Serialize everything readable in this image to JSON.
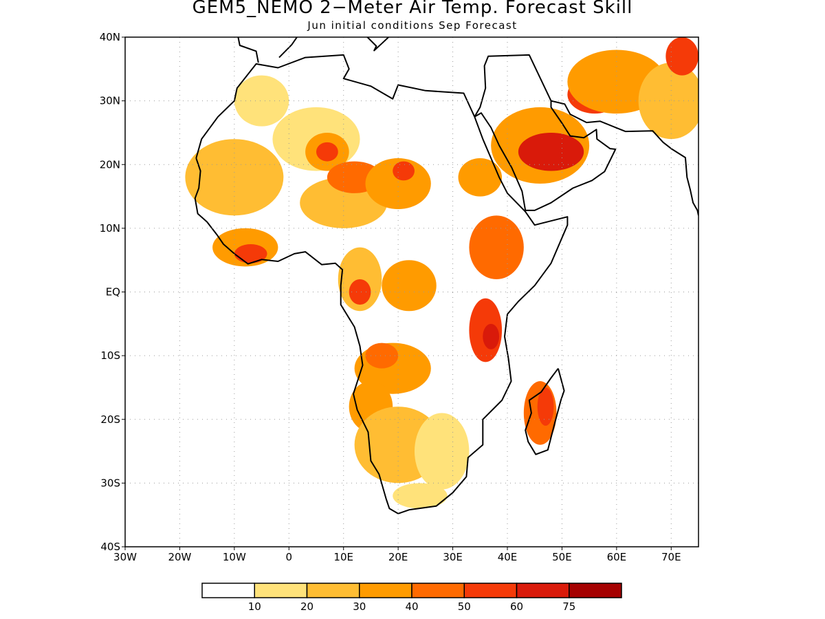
{
  "title": "GEM5_NEMO 2−Meter Air Temp. Forecast Skill",
  "subtitle": "Jun initial conditions  Sep Forecast",
  "map": {
    "lon_range": [
      -30,
      75
    ],
    "lat_range": [
      -40,
      40
    ],
    "lon_ticks": [
      -30,
      -20,
      -10,
      0,
      10,
      20,
      30,
      40,
      50,
      60,
      70
    ],
    "lat_ticks": [
      40,
      30,
      20,
      10,
      0,
      -10,
      -20,
      -30,
      -40
    ],
    "lon_labels": [
      "30W",
      "20W",
      "10W",
      "0",
      "10E",
      "20E",
      "30E",
      "40E",
      "50E",
      "60E",
      "70E"
    ],
    "lat_labels": [
      "40N",
      "30N",
      "20N",
      "10N",
      "EQ",
      "10S",
      "20S",
      "30S",
      "40S"
    ],
    "grid": "dotted"
  },
  "colorbar": {
    "levels": [
      "10",
      "20",
      "30",
      "40",
      "50",
      "60",
      "75"
    ],
    "colors": [
      "#ffffff",
      "#ffe27a",
      "#ffbd33",
      "#ff9b00",
      "#ff6a00",
      "#f53a08",
      "#d91a0a",
      "#a50000"
    ]
  },
  "skill_regions": [
    {
      "level": 1,
      "lon": 5,
      "lat": 24,
      "rx": 8,
      "ry": 5
    },
    {
      "level": 3,
      "lon": 7,
      "lat": 22,
      "rx": 4,
      "ry": 3
    },
    {
      "level": 5,
      "lon": 7,
      "lat": 22,
      "rx": 2,
      "ry": 1.5
    },
    {
      "level": 2,
      "lon": -10,
      "lat": 18,
      "rx": 9,
      "ry": 6
    },
    {
      "level": 1,
      "lon": -5,
      "lat": 30,
      "rx": 5,
      "ry": 4
    },
    {
      "level": 3,
      "lon": -8,
      "lat": 7,
      "rx": 6,
      "ry": 3
    },
    {
      "level": 5,
      "lon": -7,
      "lat": 6,
      "rx": 3,
      "ry": 1.5
    },
    {
      "level": 2,
      "lon": 10,
      "lat": 14,
      "rx": 8,
      "ry": 4
    },
    {
      "level": 4,
      "lon": 12,
      "lat": 18,
      "rx": 5,
      "ry": 2.5
    },
    {
      "level": 3,
      "lon": 20,
      "lat": 17,
      "rx": 6,
      "ry": 4
    },
    {
      "level": 5,
      "lon": 21,
      "lat": 19,
      "rx": 2,
      "ry": 1.5
    },
    {
      "level": 3,
      "lon": 35,
      "lat": 18,
      "rx": 4,
      "ry": 3
    },
    {
      "level": 2,
      "lon": 13,
      "lat": 2,
      "rx": 4,
      "ry": 5
    },
    {
      "level": 5,
      "lon": 13,
      "lat": 0,
      "rx": 2,
      "ry": 2
    },
    {
      "level": 3,
      "lon": 22,
      "lat": 1,
      "rx": 5,
      "ry": 4
    },
    {
      "level": 4,
      "lon": 38,
      "lat": 7,
      "rx": 5,
      "ry": 5
    },
    {
      "level": 5,
      "lon": 36,
      "lat": -6,
      "rx": 3,
      "ry": 5
    },
    {
      "level": 6,
      "lon": 37,
      "lat": -7,
      "rx": 1.5,
      "ry": 2
    },
    {
      "level": 3,
      "lon": 19,
      "lat": -12,
      "rx": 7,
      "ry": 4
    },
    {
      "level": 4,
      "lon": 17,
      "lat": -10,
      "rx": 3,
      "ry": 2
    },
    {
      "level": 3,
      "lon": 15,
      "lat": -18,
      "rx": 4,
      "ry": 4
    },
    {
      "level": 2,
      "lon": 20,
      "lat": -24,
      "rx": 8,
      "ry": 6
    },
    {
      "level": 1,
      "lon": 28,
      "lat": -25,
      "rx": 5,
      "ry": 6
    },
    {
      "level": 1,
      "lon": 24,
      "lat": -32,
      "rx": 5,
      "ry": 2
    },
    {
      "level": 4,
      "lon": 46,
      "lat": -19,
      "rx": 3,
      "ry": 5
    },
    {
      "level": 5,
      "lon": 47,
      "lat": -18,
      "rx": 1.5,
      "ry": 3
    },
    {
      "level": 3,
      "lon": 46,
      "lat": 23,
      "rx": 9,
      "ry": 6
    },
    {
      "level": 6,
      "lon": 48,
      "lat": 22,
      "rx": 6,
      "ry": 3
    },
    {
      "level": 5,
      "lon": 56,
      "lat": 31,
      "rx": 5,
      "ry": 3
    },
    {
      "level": 3,
      "lon": 60,
      "lat": 33,
      "rx": 9,
      "ry": 5
    },
    {
      "level": 2,
      "lon": 70,
      "lat": 30,
      "rx": 6,
      "ry": 6
    },
    {
      "level": 5,
      "lon": 72,
      "lat": 37,
      "rx": 3,
      "ry": 3
    }
  ]
}
